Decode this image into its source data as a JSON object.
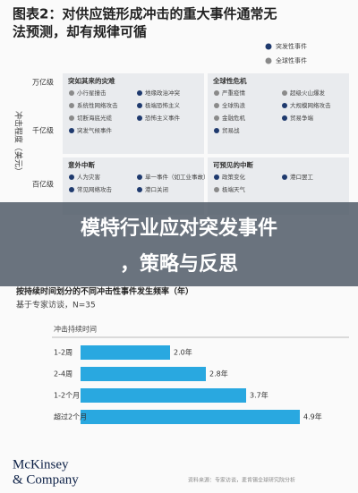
{
  "figure": {
    "title_line1": "图表2：对供应链形成冲击的重大事件通常无",
    "title_line2": "法预测，却有规律可循",
    "legend": [
      {
        "label": "突发性事件",
        "color": "#1f3a6e"
      },
      {
        "label": "全球性事件",
        "color": "#8a8a8a"
      }
    ],
    "y_axis_label": "冲击程度（美元）",
    "rows": [
      "万亿级",
      "千亿级",
      "百亿级"
    ],
    "quadrants": [
      {
        "title": "突如其来的灾难",
        "items": [
          {
            "label": "小行星撞击",
            "color": "#8a8a8a"
          },
          {
            "label": "地缘政治冲突",
            "color": "#1f3a6e"
          },
          {
            "label": "系统性网络攻击",
            "color": "#8a8a8a"
          },
          {
            "label": "极端恐怖主义",
            "color": "#1f3a6e"
          },
          {
            "label": "切断海底光缆",
            "color": "#8a8a8a"
          },
          {
            "label": "恐怖主义事件",
            "color": "#1f3a6e"
          },
          {
            "label": "突发气候事件",
            "color": "#1f3a6e"
          }
        ]
      },
      {
        "title": "全球性危机",
        "items": [
          {
            "label": "严重疫情",
            "color": "#8a8a8a"
          },
          {
            "label": "超级火山爆发",
            "color": "#8a8a8a"
          },
          {
            "label": "全球热浪",
            "color": "#8a8a8a"
          },
          {
            "label": "大规模网络攻击",
            "color": "#1f3a6e"
          },
          {
            "label": "金融危机",
            "color": "#8a8a8a"
          },
          {
            "label": "贸易争端",
            "color": "#1f3a6e"
          },
          {
            "label": "贸易战",
            "color": "#1f3a6e"
          }
        ]
      },
      {
        "title": "意外中断",
        "items": [
          {
            "label": "人为灾害",
            "color": "#1f3a6e"
          },
          {
            "label": "单一事件（如工业事故）",
            "color": "#1f3a6e"
          },
          {
            "label": "常见网络攻击",
            "color": "#1f3a6e"
          },
          {
            "label": "港口关闭",
            "color": "#1f3a6e"
          }
        ]
      },
      {
        "title": "可预见的中断",
        "items": [
          {
            "label": "政策变化",
            "color": "#1f3a6e"
          },
          {
            "label": "港口罢工",
            "color": "#1f3a6e"
          },
          {
            "label": "极端天气",
            "color": "#8a8a8a"
          }
        ]
      }
    ]
  },
  "overlay": {
    "line1": "模特行业应对突发事件",
    "line2": "，策略与反思"
  },
  "chart_data": {
    "type": "bar",
    "orientation": "horizontal",
    "title": "按持续时间划分的不同冲击性事件发生频率（年）",
    "subtitle": "基于专家访谈，N=35",
    "category_header": "冲击持续时间",
    "categories": [
      "1-2周",
      "2-4周",
      "1-2个月",
      "超过2个月"
    ],
    "values": [
      2.0,
      2.8,
      3.7,
      4.9
    ],
    "value_labels": [
      "2.0年",
      "2.8年",
      "3.7年",
      "4.9年"
    ],
    "color": "#29a8e0"
  },
  "footer": {
    "logo_line1": "McKinsey",
    "logo_line2": "& Company",
    "source": "资料来源：专家访谈，麦肯锡全球研究院分析"
  }
}
